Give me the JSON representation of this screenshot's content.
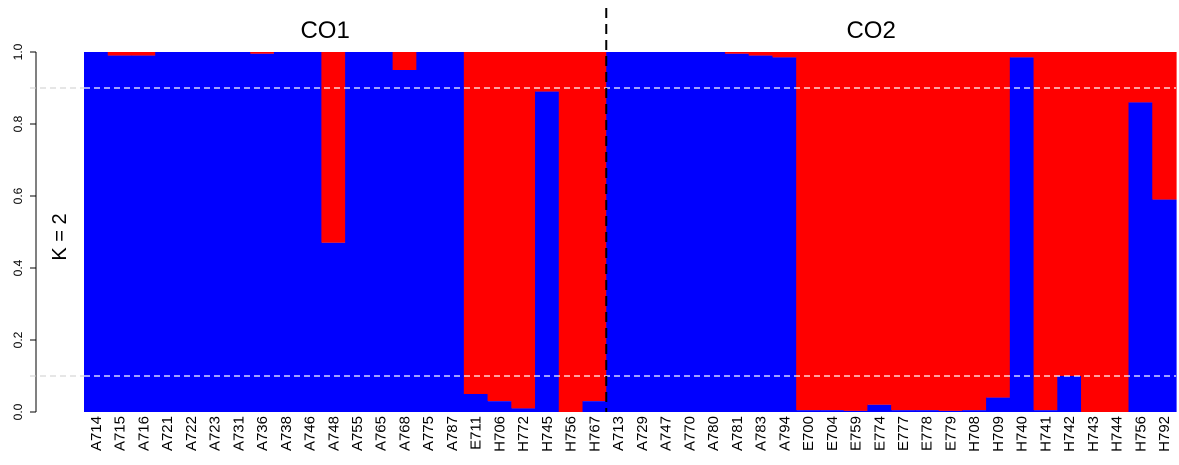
{
  "chart_data": {
    "type": "bar",
    "stacked": true,
    "ylabel": "K = 2",
    "ylim": [
      0,
      1
    ],
    "yticks": [
      "0.0",
      "0.2",
      "0.4",
      "0.6",
      "0.8",
      "1.0"
    ],
    "reference_lines": [
      0.1,
      0.9
    ],
    "colors": {
      "cluster1": "#0000ff",
      "cluster2": "#ff0000"
    },
    "groups": [
      {
        "label": "CO1",
        "categories": [
          "A714",
          "A715",
          "A716",
          "A721",
          "A722",
          "A723",
          "A731",
          "A736",
          "A738",
          "A746",
          "A748",
          "A755",
          "A765",
          "A768",
          "A775",
          "A787",
          "E711",
          "H706",
          "H772",
          "H745",
          "H756",
          "H767"
        ],
        "values": [
          1.0,
          0.99,
          0.99,
          1.0,
          1.0,
          1.0,
          1.0,
          0.995,
          1.0,
          1.0,
          0.47,
          1.0,
          1.0,
          0.95,
          1.0,
          1.0,
          0.05,
          0.03,
          0.01,
          0.89,
          0.0,
          0.03
        ]
      },
      {
        "label": "CO2",
        "categories": [
          "A713",
          "A729",
          "A747",
          "A770",
          "A780",
          "A781",
          "A783",
          "A794",
          "E700",
          "E704",
          "E759",
          "E774",
          "E777",
          "E778",
          "E779",
          "H708",
          "H709",
          "H740",
          "H741",
          "H742",
          "H743",
          "H744",
          "H756",
          "H792"
        ],
        "values": [
          1.0,
          1.0,
          1.0,
          1.0,
          1.0,
          0.995,
          0.99,
          0.985,
          0.005,
          0.005,
          0.003,
          0.02,
          0.005,
          0.005,
          0.003,
          0.005,
          0.04,
          0.985,
          0.005,
          0.1,
          0.0,
          0.0,
          0.86,
          0.59
        ]
      }
    ]
  }
}
